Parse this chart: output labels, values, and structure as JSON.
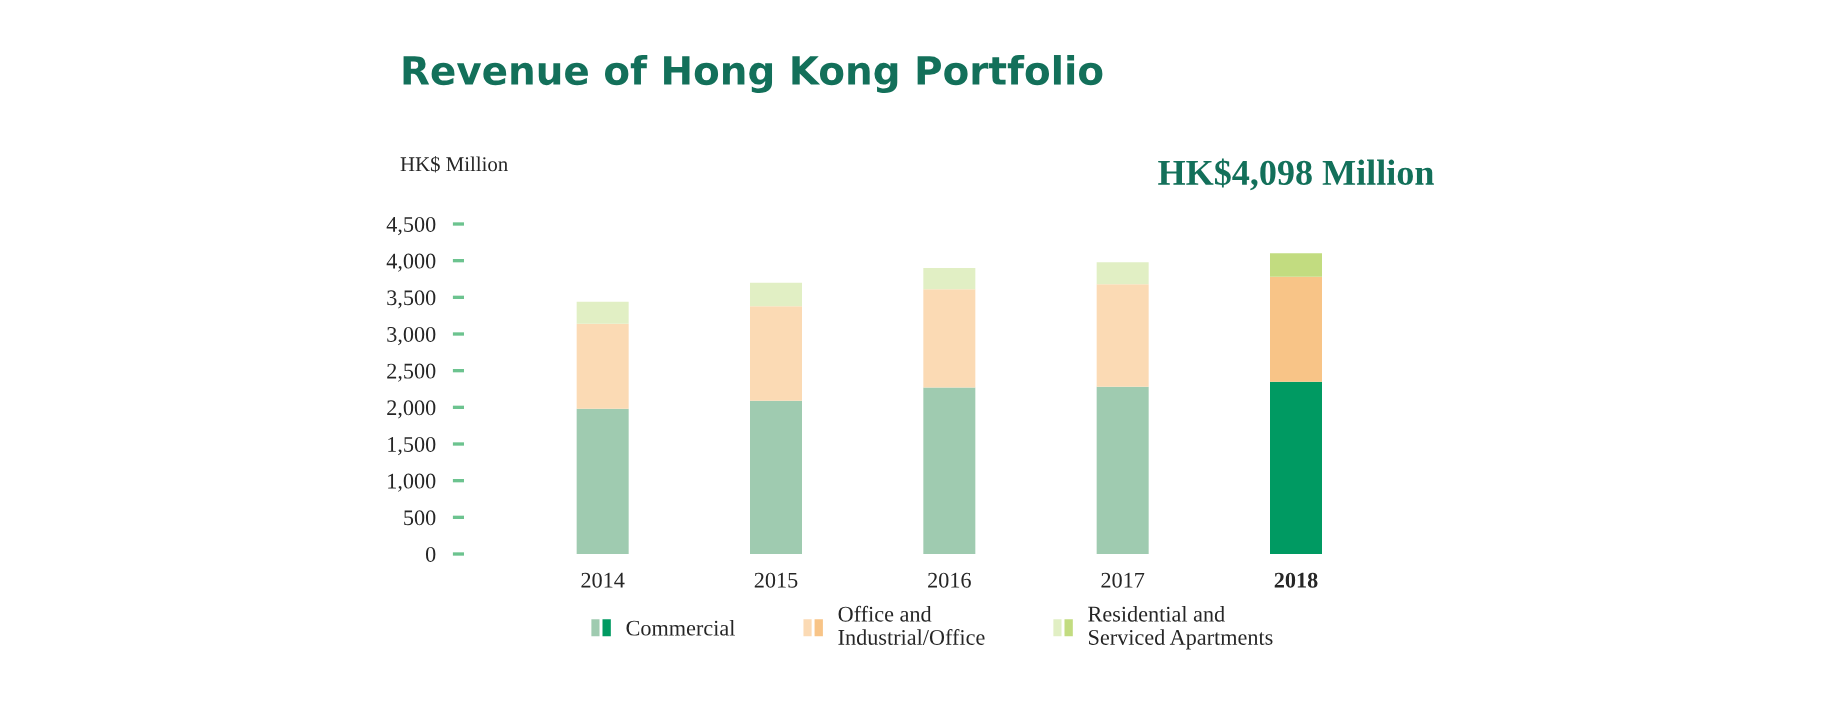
{
  "chart_data": {
    "type": "bar",
    "title": "Revenue of Hong Kong Portfolio",
    "ylabel": "HK$ Million",
    "categories": [
      "2014",
      "2015",
      "2016",
      "2017",
      "2018"
    ],
    "stacked": true,
    "series": [
      {
        "name": "Commercial",
        "colors": [
          "#9fcbb0",
          "#9fcbb0",
          "#9fcbb0",
          "#9fcbb0",
          "#009a62"
        ],
        "values": [
          1980,
          2090,
          2270,
          2280,
          2350
        ]
      },
      {
        "name": "Office and\nIndustrial/Office",
        "colors": [
          "#fbdab4",
          "#fbdab4",
          "#fbdab4",
          "#fbdab4",
          "#f8c487"
        ],
        "values": [
          1160,
          1290,
          1340,
          1400,
          1430
        ]
      },
      {
        "name": "Residential and\nServiced Apartments",
        "colors": [
          "#e1efc4",
          "#e1efc4",
          "#e1efc4",
          "#e1efc4",
          "#c2dc80"
        ],
        "values": [
          300,
          320,
          290,
          300,
          320
        ]
      }
    ],
    "ylim": [
      0,
      4500
    ],
    "yticks": [
      0,
      500,
      {
        "value": 1000,
        "label": "1,000"
      },
      {
        "value": 1500,
        "label": "1,500"
      },
      {
        "value": 2000,
        "label": "2,000"
      },
      {
        "value": 2500,
        "label": "2,500"
      },
      {
        "value": 3000,
        "label": "3,000"
      },
      {
        "value": 3500,
        "label": "3,500"
      },
      {
        "value": 4000,
        "label": "4,000"
      },
      {
        "value": 4500,
        "label": "4,500"
      }
    ],
    "annotations": [
      {
        "text": "HK$4,098 Million",
        "x": "2018",
        "y": 4098
      }
    ],
    "grid": false,
    "legend": "bottom"
  }
}
